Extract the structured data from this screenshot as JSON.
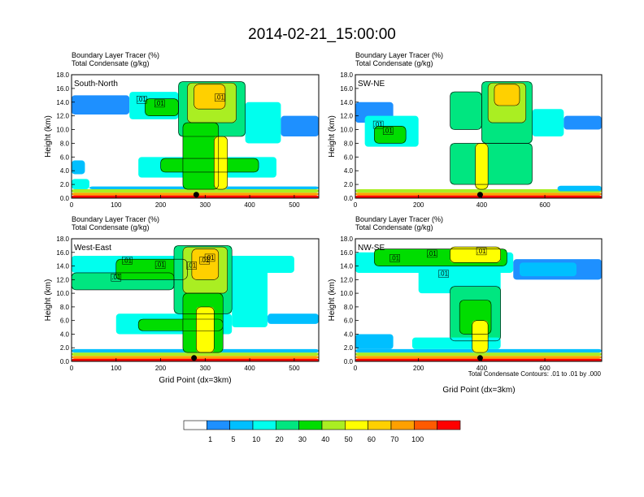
{
  "title": "2014-02-21_15:00:00",
  "header_line1": "Boundary Layer Tracer   (%)",
  "header_line2": "Total Condensate   (g/kg)",
  "ylabel": "Height (km)",
  "xlabel": "Grid Point (dx=3km)",
  "contour_note": "Total Condensate Contours: .01 to .01 by .000",
  "colorbar": {
    "colors": [
      "#ffffff",
      "#1e90ff",
      "#00bfff",
      "#00ffee",
      "#00e680",
      "#00dd00",
      "#aaee22",
      "#ffff00",
      "#ffd000",
      "#ffa000",
      "#ff5a00",
      "#ff0000"
    ],
    "labels": [
      "1",
      "5",
      "10",
      "20",
      "30",
      "40",
      "50",
      "60",
      "70",
      "100"
    ]
  },
  "chart_data": [
    {
      "type": "heatmap",
      "panel_label": "South-North",
      "xlim": [
        0,
        555
      ],
      "ylim": [
        0,
        18
      ],
      "xticks": [
        "0",
        "100",
        "200",
        "300",
        "400",
        "500"
      ],
      "yticks": [
        "0.0",
        "2.0",
        "4.0",
        "6.0",
        "8.0",
        "10.0",
        "12.0",
        "14.0",
        "16.0",
        "18.0"
      ],
      "marker_x": 280,
      "contour_labels": [
        ".01",
        ".01",
        ".01"
      ],
      "regions": [
        {
          "x0": 0,
          "x1": 555,
          "y0": 0,
          "y1": 0.4,
          "level": 11
        },
        {
          "x0": 0,
          "x1": 555,
          "y0": 0.4,
          "y1": 0.8,
          "level": 9
        },
        {
          "x0": 0,
          "x1": 555,
          "y0": 0.8,
          "y1": 1.3,
          "level": 6
        },
        {
          "x0": 0,
          "x1": 40,
          "y0": 1.3,
          "y1": 2.8,
          "level": 3
        },
        {
          "x0": 40,
          "x1": 555,
          "y0": 1.3,
          "y1": 1.7,
          "level": 2
        },
        {
          "x0": 0,
          "x1": 30,
          "y0": 3.5,
          "y1": 5.5,
          "level": 2
        },
        {
          "x0": 0,
          "x1": 130,
          "y0": 12.2,
          "y1": 15.0,
          "level": 1
        },
        {
          "x0": 130,
          "x1": 240,
          "y0": 11.5,
          "y1": 15.5,
          "level": 3
        },
        {
          "x0": 165,
          "x1": 240,
          "y0": 12.0,
          "y1": 14.5,
          "level": 5
        },
        {
          "x0": 240,
          "x1": 390,
          "y0": 9.0,
          "y1": 17.0,
          "level": 4
        },
        {
          "x0": 260,
          "x1": 370,
          "y0": 11.0,
          "y1": 16.8,
          "level": 6
        },
        {
          "x0": 275,
          "x1": 345,
          "y0": 13.0,
          "y1": 16.6,
          "level": 8
        },
        {
          "x0": 390,
          "x1": 470,
          "y0": 8.0,
          "y1": 14.0,
          "level": 3
        },
        {
          "x0": 470,
          "x1": 555,
          "y0": 9.0,
          "y1": 12.0,
          "level": 1
        },
        {
          "x0": 150,
          "x1": 460,
          "y0": 3.0,
          "y1": 6.0,
          "level": 3
        },
        {
          "x0": 200,
          "x1": 420,
          "y0": 3.8,
          "y1": 5.8,
          "level": 5
        },
        {
          "x0": 250,
          "x1": 330,
          "y0": 1.3,
          "y1": 11.0,
          "level": 5
        },
        {
          "x0": 320,
          "x1": 350,
          "y0": 1.3,
          "y1": 9.0,
          "level": 7
        }
      ]
    },
    {
      "type": "heatmap",
      "panel_label": "SW-NE",
      "xlim": [
        0,
        780
      ],
      "ylim": [
        0,
        18
      ],
      "xticks": [
        "0",
        "200",
        "400",
        "600"
      ],
      "yticks": [
        "0.0",
        "2.0",
        "4.0",
        "6.0",
        "8.0",
        "10.0",
        "12.0",
        "14.0",
        "16.0",
        "18.0"
      ],
      "marker_x": 395,
      "contour_labels": [
        ".01",
        ".01"
      ],
      "regions": [
        {
          "x0": 0,
          "x1": 780,
          "y0": 0,
          "y1": 0.4,
          "level": 11
        },
        {
          "x0": 0,
          "x1": 780,
          "y0": 0.4,
          "y1": 0.8,
          "level": 9
        },
        {
          "x0": 0,
          "x1": 780,
          "y0": 0.8,
          "y1": 1.3,
          "level": 6
        },
        {
          "x0": 0,
          "x1": 120,
          "y0": 11.0,
          "y1": 14.0,
          "level": 1
        },
        {
          "x0": 30,
          "x1": 200,
          "y0": 7.5,
          "y1": 12.0,
          "level": 3
        },
        {
          "x0": 60,
          "x1": 160,
          "y0": 8.0,
          "y1": 10.5,
          "level": 5
        },
        {
          "x0": 300,
          "x1": 400,
          "y0": 10.0,
          "y1": 15.5,
          "level": 4
        },
        {
          "x0": 400,
          "x1": 560,
          "y0": 8.0,
          "y1": 17.0,
          "level": 4
        },
        {
          "x0": 420,
          "x1": 540,
          "y0": 11.0,
          "y1": 16.8,
          "level": 6
        },
        {
          "x0": 440,
          "x1": 520,
          "y0": 13.5,
          "y1": 16.6,
          "level": 8
        },
        {
          "x0": 560,
          "x1": 660,
          "y0": 9.0,
          "y1": 13.0,
          "level": 3
        },
        {
          "x0": 660,
          "x1": 780,
          "y0": 10.0,
          "y1": 12.0,
          "level": 1
        },
        {
          "x0": 300,
          "x1": 560,
          "y0": 2.0,
          "y1": 8.0,
          "level": 4
        },
        {
          "x0": 380,
          "x1": 420,
          "y0": 1.3,
          "y1": 8.0,
          "level": 7
        },
        {
          "x0": 640,
          "x1": 780,
          "y0": 1.0,
          "y1": 1.8,
          "level": 2
        }
      ]
    },
    {
      "type": "heatmap",
      "panel_label": "West-East",
      "xlim": [
        0,
        555
      ],
      "ylim": [
        0,
        18
      ],
      "xticks": [
        "0",
        "100",
        "200",
        "300",
        "400",
        "500"
      ],
      "yticks": [
        "0.0",
        "2.0",
        "4.0",
        "6.0",
        "8.0",
        "10.0",
        "12.0",
        "14.0",
        "16.0",
        "18.0"
      ],
      "marker_x": 275,
      "contour_labels": [
        ".01",
        ".01",
        ".01",
        ".01",
        ".01",
        ".01"
      ],
      "regions": [
        {
          "x0": 0,
          "x1": 555,
          "y0": 0,
          "y1": 0.4,
          "level": 11
        },
        {
          "x0": 0,
          "x1": 555,
          "y0": 0.4,
          "y1": 0.8,
          "level": 9
        },
        {
          "x0": 0,
          "x1": 555,
          "y0": 0.8,
          "y1": 1.3,
          "level": 6
        },
        {
          "x0": 0,
          "x1": 555,
          "y0": 1.3,
          "y1": 1.8,
          "level": 2
        },
        {
          "x0": 0,
          "x1": 500,
          "y0": 13.0,
          "y1": 15.5,
          "level": 3
        },
        {
          "x0": 0,
          "x1": 230,
          "y0": 10.5,
          "y1": 13.0,
          "level": 4
        },
        {
          "x0": 100,
          "x1": 260,
          "y0": 12.0,
          "y1": 15.0,
          "level": 5
        },
        {
          "x0": 230,
          "x1": 360,
          "y0": 7.0,
          "y1": 17.0,
          "level": 4
        },
        {
          "x0": 250,
          "x1": 350,
          "y0": 10.0,
          "y1": 16.8,
          "level": 6
        },
        {
          "x0": 270,
          "x1": 330,
          "y0": 12.0,
          "y1": 16.5,
          "level": 8
        },
        {
          "x0": 360,
          "x1": 440,
          "y0": 5.0,
          "y1": 15.0,
          "level": 3
        },
        {
          "x0": 440,
          "x1": 555,
          "y0": 5.5,
          "y1": 7.0,
          "level": 2
        },
        {
          "x0": 100,
          "x1": 360,
          "y0": 4.0,
          "y1": 7.0,
          "level": 3
        },
        {
          "x0": 150,
          "x1": 340,
          "y0": 4.5,
          "y1": 6.2,
          "level": 5
        },
        {
          "x0": 250,
          "x1": 340,
          "y0": 1.3,
          "y1": 10.0,
          "level": 5
        },
        {
          "x0": 280,
          "x1": 320,
          "y0": 1.3,
          "y1": 8.0,
          "level": 7
        }
      ]
    },
    {
      "type": "heatmap",
      "panel_label": "NW-SE",
      "xlim": [
        0,
        780
      ],
      "ylim": [
        0,
        18
      ],
      "xticks": [
        "0",
        "200",
        "400",
        "600"
      ],
      "yticks": [
        "0.0",
        "2.0",
        "4.0",
        "6.0",
        "8.0",
        "10.0",
        "12.0",
        "14.0",
        "16.0",
        "18.0"
      ],
      "marker_x": 395,
      "contour_labels": [
        ".01",
        ".01",
        ".01",
        ".01"
      ],
      "regions": [
        {
          "x0": 0,
          "x1": 780,
          "y0": 0,
          "y1": 0.4,
          "level": 11
        },
        {
          "x0": 0,
          "x1": 780,
          "y0": 0.4,
          "y1": 0.8,
          "level": 9
        },
        {
          "x0": 0,
          "x1": 780,
          "y0": 0.8,
          "y1": 1.3,
          "level": 6
        },
        {
          "x0": 0,
          "x1": 780,
          "y0": 1.3,
          "y1": 1.8,
          "level": 2
        },
        {
          "x0": 0,
          "x1": 500,
          "y0": 13.0,
          "y1": 16.0,
          "level": 3
        },
        {
          "x0": 60,
          "x1": 480,
          "y0": 14.0,
          "y1": 16.5,
          "level": 5
        },
        {
          "x0": 300,
          "x1": 460,
          "y0": 14.5,
          "y1": 16.8,
          "level": 7
        },
        {
          "x0": 500,
          "x1": 780,
          "y0": 12.0,
          "y1": 15.0,
          "level": 1
        },
        {
          "x0": 520,
          "x1": 700,
          "y0": 12.5,
          "y1": 14.5,
          "level": 2
        },
        {
          "x0": 200,
          "x1": 460,
          "y0": 10.0,
          "y1": 14.0,
          "level": 3
        },
        {
          "x0": 300,
          "x1": 460,
          "y0": 3.0,
          "y1": 11.0,
          "level": 4
        },
        {
          "x0": 330,
          "x1": 430,
          "y0": 4.0,
          "y1": 9.0,
          "level": 5
        },
        {
          "x0": 0,
          "x1": 120,
          "y0": 1.8,
          "y1": 4.0,
          "level": 2
        },
        {
          "x0": 180,
          "x1": 460,
          "y0": 1.8,
          "y1": 3.5,
          "level": 3
        },
        {
          "x0": 370,
          "x1": 420,
          "y0": 1.3,
          "y1": 6.0,
          "level": 7
        }
      ]
    }
  ]
}
